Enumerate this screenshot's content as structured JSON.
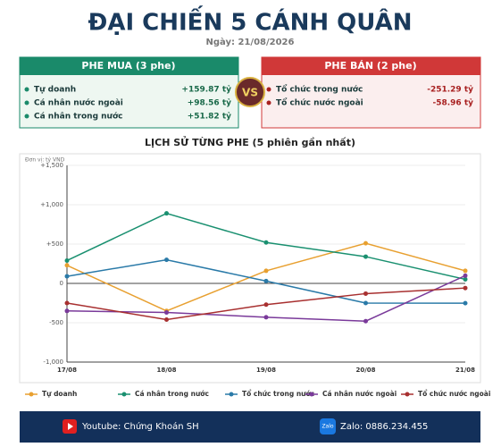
{
  "header": {
    "title": "ĐẠI CHIẾN 5 CÁNH QUÂN",
    "date": "Ngày: 21/08/2026"
  },
  "buy_side": {
    "title": "PHE MUA  (3 phe)",
    "rows": [
      {
        "label": "Tự doanh",
        "value": "+159.87 tỷ"
      },
      {
        "label": "Cá nhân nước ngoài",
        "value": "+98.56 tỷ"
      },
      {
        "label": "Cá nhân trong nước",
        "value": "+51.82 tỷ"
      }
    ]
  },
  "sell_side": {
    "title": "PHE BÁN  (2 phe)",
    "rows": [
      {
        "label": "Tổ chức trong nước",
        "value": "-251.29 tỷ"
      },
      {
        "label": "Tổ chức nước ngoài",
        "value": "-58.96 tỷ"
      }
    ]
  },
  "vs": "VS",
  "chart_data": {
    "type": "line",
    "title": "LỊCH SỬ TỪNG PHE (5 phiên gần nhất)",
    "unit": "Đơn vị: tỷ VND",
    "categories": [
      "17/08",
      "18/08",
      "19/08",
      "20/08",
      "21/08"
    ],
    "ylim": [
      -1000,
      1500
    ],
    "yticks": [
      {
        "value": -1000,
        "label": "-1,000"
      },
      -500,
      0,
      {
        "value": 500,
        "label": "+500"
      },
      {
        "value": 1000,
        "label": "+1,000"
      },
      {
        "value": 1500,
        "label": "+1,500"
      }
    ],
    "grid": true,
    "series": [
      {
        "name": "Tự doanh",
        "color": "#e8a030",
        "values": [
          230,
          -350,
          160,
          510,
          159.87
        ]
      },
      {
        "name": "Cá nhân trong nước",
        "color": "#1a9070",
        "values": [
          290,
          890,
          520,
          340,
          51.82
        ]
      },
      {
        "name": "Tổ chức trong nước",
        "color": "#2a7aa8",
        "values": [
          90,
          300,
          30,
          -250,
          -251.29
        ]
      },
      {
        "name": "Cá nhân nước ngoài",
        "color": "#7a3a9a",
        "values": [
          -350,
          -370,
          -430,
          -480,
          98.56
        ]
      },
      {
        "name": "Tổ chức nước ngoài",
        "color": "#a83030",
        "values": [
          -250,
          -460,
          -270,
          -130,
          -58.96
        ]
      }
    ]
  },
  "footer": {
    "youtube": "Youtube: Chứng Khoán SH",
    "zalo_icon": "Zalo",
    "zalo": "Zalo: 0886.234.455"
  }
}
